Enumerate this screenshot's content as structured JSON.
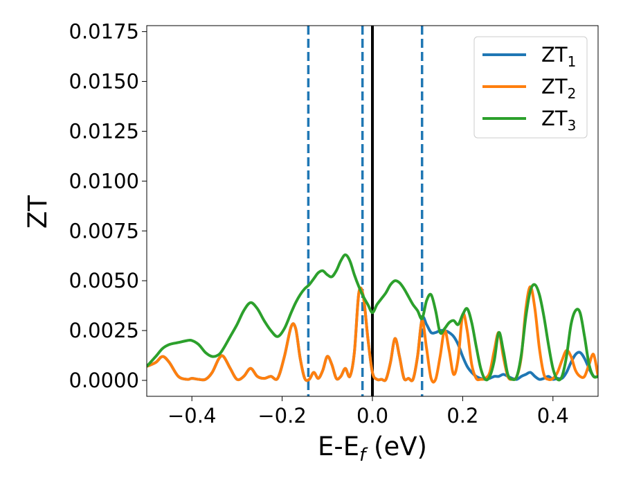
{
  "chart_data": {
    "type": "line",
    "xlabel": {
      "main": "E-E",
      "sub": "f",
      "rest": " (eV)"
    },
    "ylabel": "ZT",
    "xlim": [
      -0.5,
      0.5
    ],
    "ylim": [
      -0.0008,
      0.0178
    ],
    "xticks": [
      {
        "value": -0.4,
        "label": "−0.4"
      },
      {
        "value": -0.2,
        "label": "−0.2"
      },
      {
        "value": 0.0,
        "label": "0.0"
      },
      {
        "value": 0.2,
        "label": "0.2"
      },
      {
        "value": 0.4,
        "label": "0.4"
      }
    ],
    "yticks": [
      {
        "value": 0.0,
        "label": "0.0000"
      },
      {
        "value": 0.0025,
        "label": "0.0025"
      },
      {
        "value": 0.005,
        "label": "0.0050"
      },
      {
        "value": 0.0075,
        "label": "0.0075"
      },
      {
        "value": 0.01,
        "label": "0.0100"
      },
      {
        "value": 0.0125,
        "label": "0.0125"
      },
      {
        "value": 0.015,
        "label": "0.0150"
      },
      {
        "value": 0.0175,
        "label": "0.0175"
      }
    ],
    "grid": false,
    "legend_position": "top-right",
    "vlines": [
      {
        "x": -0.142,
        "style": "dashed",
        "color": "#1f77b4"
      },
      {
        "x": -0.022,
        "style": "dashed",
        "color": "#1f77b4"
      },
      {
        "x": 0.0,
        "style": "solid",
        "color": "#000000"
      },
      {
        "x": 0.11,
        "style": "dashed",
        "color": "#1f77b4"
      }
    ],
    "series": [
      {
        "name": {
          "main": "ZT",
          "sub": "1"
        },
        "color": "#1f77b4",
        "x": [
          -0.5,
          -0.48,
          -0.465,
          -0.45,
          -0.43,
          -0.41,
          -0.4,
          -0.385,
          -0.37,
          -0.355,
          -0.34,
          -0.33,
          -0.315,
          -0.3,
          -0.285,
          -0.27,
          -0.255,
          -0.24,
          -0.225,
          -0.21,
          -0.195,
          -0.18,
          -0.17,
          -0.16,
          -0.15,
          -0.14,
          -0.13,
          -0.12,
          -0.11,
          -0.1,
          -0.09,
          -0.08,
          -0.07,
          -0.06,
          -0.05,
          -0.04,
          -0.03,
          -0.02,
          -0.01,
          0.0,
          0.01,
          0.02,
          0.03,
          0.04,
          0.05,
          0.06,
          0.07,
          0.08,
          0.09,
          0.1,
          0.11,
          0.12,
          0.13,
          0.14,
          0.15,
          0.16,
          0.17,
          0.18,
          0.19,
          0.2,
          0.21,
          0.22,
          0.23,
          0.24,
          0.25,
          0.26,
          0.27,
          0.28,
          0.29,
          0.3,
          0.31,
          0.32,
          0.33,
          0.34,
          0.35,
          0.36,
          0.37,
          0.38,
          0.39,
          0.4,
          0.41,
          0.42,
          0.43,
          0.44,
          0.45,
          0.46,
          0.47,
          0.48,
          0.49,
          0.5
        ],
        "y": [
          0.0007,
          0.0009,
          0.0012,
          0.0009,
          0.0002,
          5e-05,
          0.0001,
          5e-05,
          5e-05,
          0.0004,
          0.0011,
          0.0012,
          0.0006,
          5e-05,
          0.0002,
          0.0006,
          0.0002,
          0.0001,
          0.0002,
          0.0001,
          0.0012,
          0.0027,
          0.0026,
          0.0011,
          0.0001,
          5e-05,
          0.0004,
          0.0001,
          0.0005,
          0.0012,
          0.0008,
          0.0001,
          0.0002,
          0.0006,
          0.0002,
          0.0014,
          0.0044,
          0.0042,
          0.0021,
          0.0004,
          5e-05,
          5e-05,
          5e-05,
          0.0009,
          0.0021,
          0.0012,
          0.0001,
          0.0001,
          5e-05,
          0.0012,
          0.0031,
          0.0028,
          0.0024,
          0.0024,
          0.0025,
          0.0025,
          0.0024,
          0.0022,
          0.0018,
          0.0012,
          0.0007,
          0.0004,
          0.0002,
          0.0001,
          5e-05,
          0.0001,
          0.0002,
          0.0002,
          0.0003,
          0.0002,
          0.0001,
          5e-05,
          0.0002,
          0.0003,
          0.0004,
          0.0002,
          5e-05,
          0.0001,
          0.0002,
          5e-05,
          0.0001,
          0.0001,
          0.0004,
          0.0009,
          0.0013,
          0.0014,
          0.0011,
          0.0006,
          0.0002,
          0.0002
        ]
      },
      {
        "name": {
          "main": "ZT",
          "sub": "2"
        },
        "color": "#ff7f0e",
        "x": [
          -0.5,
          -0.48,
          -0.465,
          -0.45,
          -0.43,
          -0.41,
          -0.4,
          -0.385,
          -0.37,
          -0.355,
          -0.34,
          -0.33,
          -0.315,
          -0.3,
          -0.285,
          -0.27,
          -0.255,
          -0.24,
          -0.225,
          -0.21,
          -0.195,
          -0.18,
          -0.17,
          -0.16,
          -0.15,
          -0.14,
          -0.13,
          -0.12,
          -0.11,
          -0.1,
          -0.09,
          -0.08,
          -0.07,
          -0.06,
          -0.05,
          -0.04,
          -0.03,
          -0.02,
          -0.01,
          0.0,
          0.01,
          0.02,
          0.03,
          0.04,
          0.05,
          0.06,
          0.07,
          0.08,
          0.09,
          0.1,
          0.11,
          0.12,
          0.13,
          0.14,
          0.15,
          0.16,
          0.17,
          0.18,
          0.19,
          0.2,
          0.21,
          0.22,
          0.23,
          0.24,
          0.25,
          0.26,
          0.27,
          0.28,
          0.29,
          0.3,
          0.31,
          0.32,
          0.33,
          0.34,
          0.35,
          0.36,
          0.37,
          0.38,
          0.39,
          0.4,
          0.41,
          0.42,
          0.43,
          0.44,
          0.45,
          0.46,
          0.47,
          0.48,
          0.49,
          0.5
        ],
        "y": [
          0.0007,
          0.0009,
          0.0012,
          0.0009,
          0.0002,
          5e-05,
          0.0001,
          5e-05,
          5e-05,
          0.0004,
          0.0011,
          0.0012,
          0.0006,
          5e-05,
          0.0002,
          0.0006,
          0.0002,
          0.0001,
          0.0002,
          0.0001,
          0.0012,
          0.0027,
          0.0026,
          0.0011,
          0.0001,
          5e-05,
          0.0004,
          0.0001,
          0.0005,
          0.0012,
          0.0008,
          0.0001,
          0.0002,
          0.0006,
          0.0002,
          0.0014,
          0.0044,
          0.0042,
          0.0021,
          0.0004,
          5e-05,
          5e-05,
          5e-05,
          0.0009,
          0.0021,
          0.0012,
          0.0001,
          0.0001,
          5e-05,
          0.0012,
          0.003,
          0.0016,
          0.0001,
          5e-05,
          0.0012,
          0.0025,
          0.0015,
          0.0003,
          0.0011,
          0.0033,
          0.0025,
          0.0008,
          0.0001,
          5e-05,
          0.0001,
          0.0004,
          0.0015,
          0.0024,
          0.0012,
          0.0002,
          5e-05,
          0.0002,
          0.0012,
          0.0036,
          0.0047,
          0.0036,
          0.0016,
          0.0003,
          5e-05,
          0.0001,
          0.0004,
          0.001,
          0.0015,
          0.0012,
          0.0005,
          0.0002,
          0.0002,
          0.0008,
          0.0013,
          0.0002
        ]
      },
      {
        "name": {
          "main": "ZT",
          "sub": "3"
        },
        "color": "#2ca02c",
        "x": [
          -0.5,
          -0.48,
          -0.465,
          -0.45,
          -0.43,
          -0.41,
          -0.4,
          -0.385,
          -0.37,
          -0.355,
          -0.34,
          -0.33,
          -0.315,
          -0.3,
          -0.285,
          -0.27,
          -0.255,
          -0.24,
          -0.225,
          -0.21,
          -0.195,
          -0.18,
          -0.17,
          -0.16,
          -0.15,
          -0.14,
          -0.13,
          -0.12,
          -0.11,
          -0.1,
          -0.09,
          -0.08,
          -0.07,
          -0.06,
          -0.05,
          -0.04,
          -0.03,
          -0.02,
          -0.01,
          0.0,
          0.01,
          0.02,
          0.03,
          0.04,
          0.05,
          0.06,
          0.07,
          0.08,
          0.09,
          0.1,
          0.11,
          0.12,
          0.13,
          0.14,
          0.15,
          0.16,
          0.17,
          0.18,
          0.19,
          0.2,
          0.21,
          0.22,
          0.23,
          0.24,
          0.25,
          0.26,
          0.27,
          0.28,
          0.29,
          0.3,
          0.31,
          0.32,
          0.33,
          0.34,
          0.35,
          0.36,
          0.37,
          0.38,
          0.39,
          0.4,
          0.41,
          0.42,
          0.43,
          0.44,
          0.45,
          0.46,
          0.47,
          0.48,
          0.49,
          0.5
        ],
        "y": [
          0.0007,
          0.0012,
          0.0016,
          0.0018,
          0.0019,
          0.002,
          0.002,
          0.0018,
          0.0014,
          0.0012,
          0.0013,
          0.0016,
          0.0022,
          0.0028,
          0.0035,
          0.0039,
          0.0036,
          0.003,
          0.0025,
          0.0022,
          0.0026,
          0.0034,
          0.0039,
          0.0043,
          0.0046,
          0.0048,
          0.0051,
          0.0054,
          0.0055,
          0.0053,
          0.0052,
          0.0055,
          0.006,
          0.0063,
          0.006,
          0.0053,
          0.0047,
          0.0042,
          0.0038,
          0.0034,
          0.0038,
          0.0041,
          0.0044,
          0.0048,
          0.005,
          0.0049,
          0.0046,
          0.0042,
          0.0038,
          0.0035,
          0.0031,
          0.004,
          0.0043,
          0.0035,
          0.0024,
          0.0026,
          0.0029,
          0.003,
          0.0028,
          0.0033,
          0.0036,
          0.0029,
          0.0017,
          0.0006,
          5e-05,
          0.0002,
          0.001,
          0.0024,
          0.0015,
          0.0003,
          5e-05,
          0.0002,
          0.0013,
          0.0032,
          0.0045,
          0.0048,
          0.0043,
          0.0032,
          0.0018,
          0.0006,
          5e-05,
          0.0002,
          0.0012,
          0.0028,
          0.0035,
          0.0034,
          0.0022,
          0.0008,
          0.0002,
          0.0002
        ]
      }
    ]
  }
}
